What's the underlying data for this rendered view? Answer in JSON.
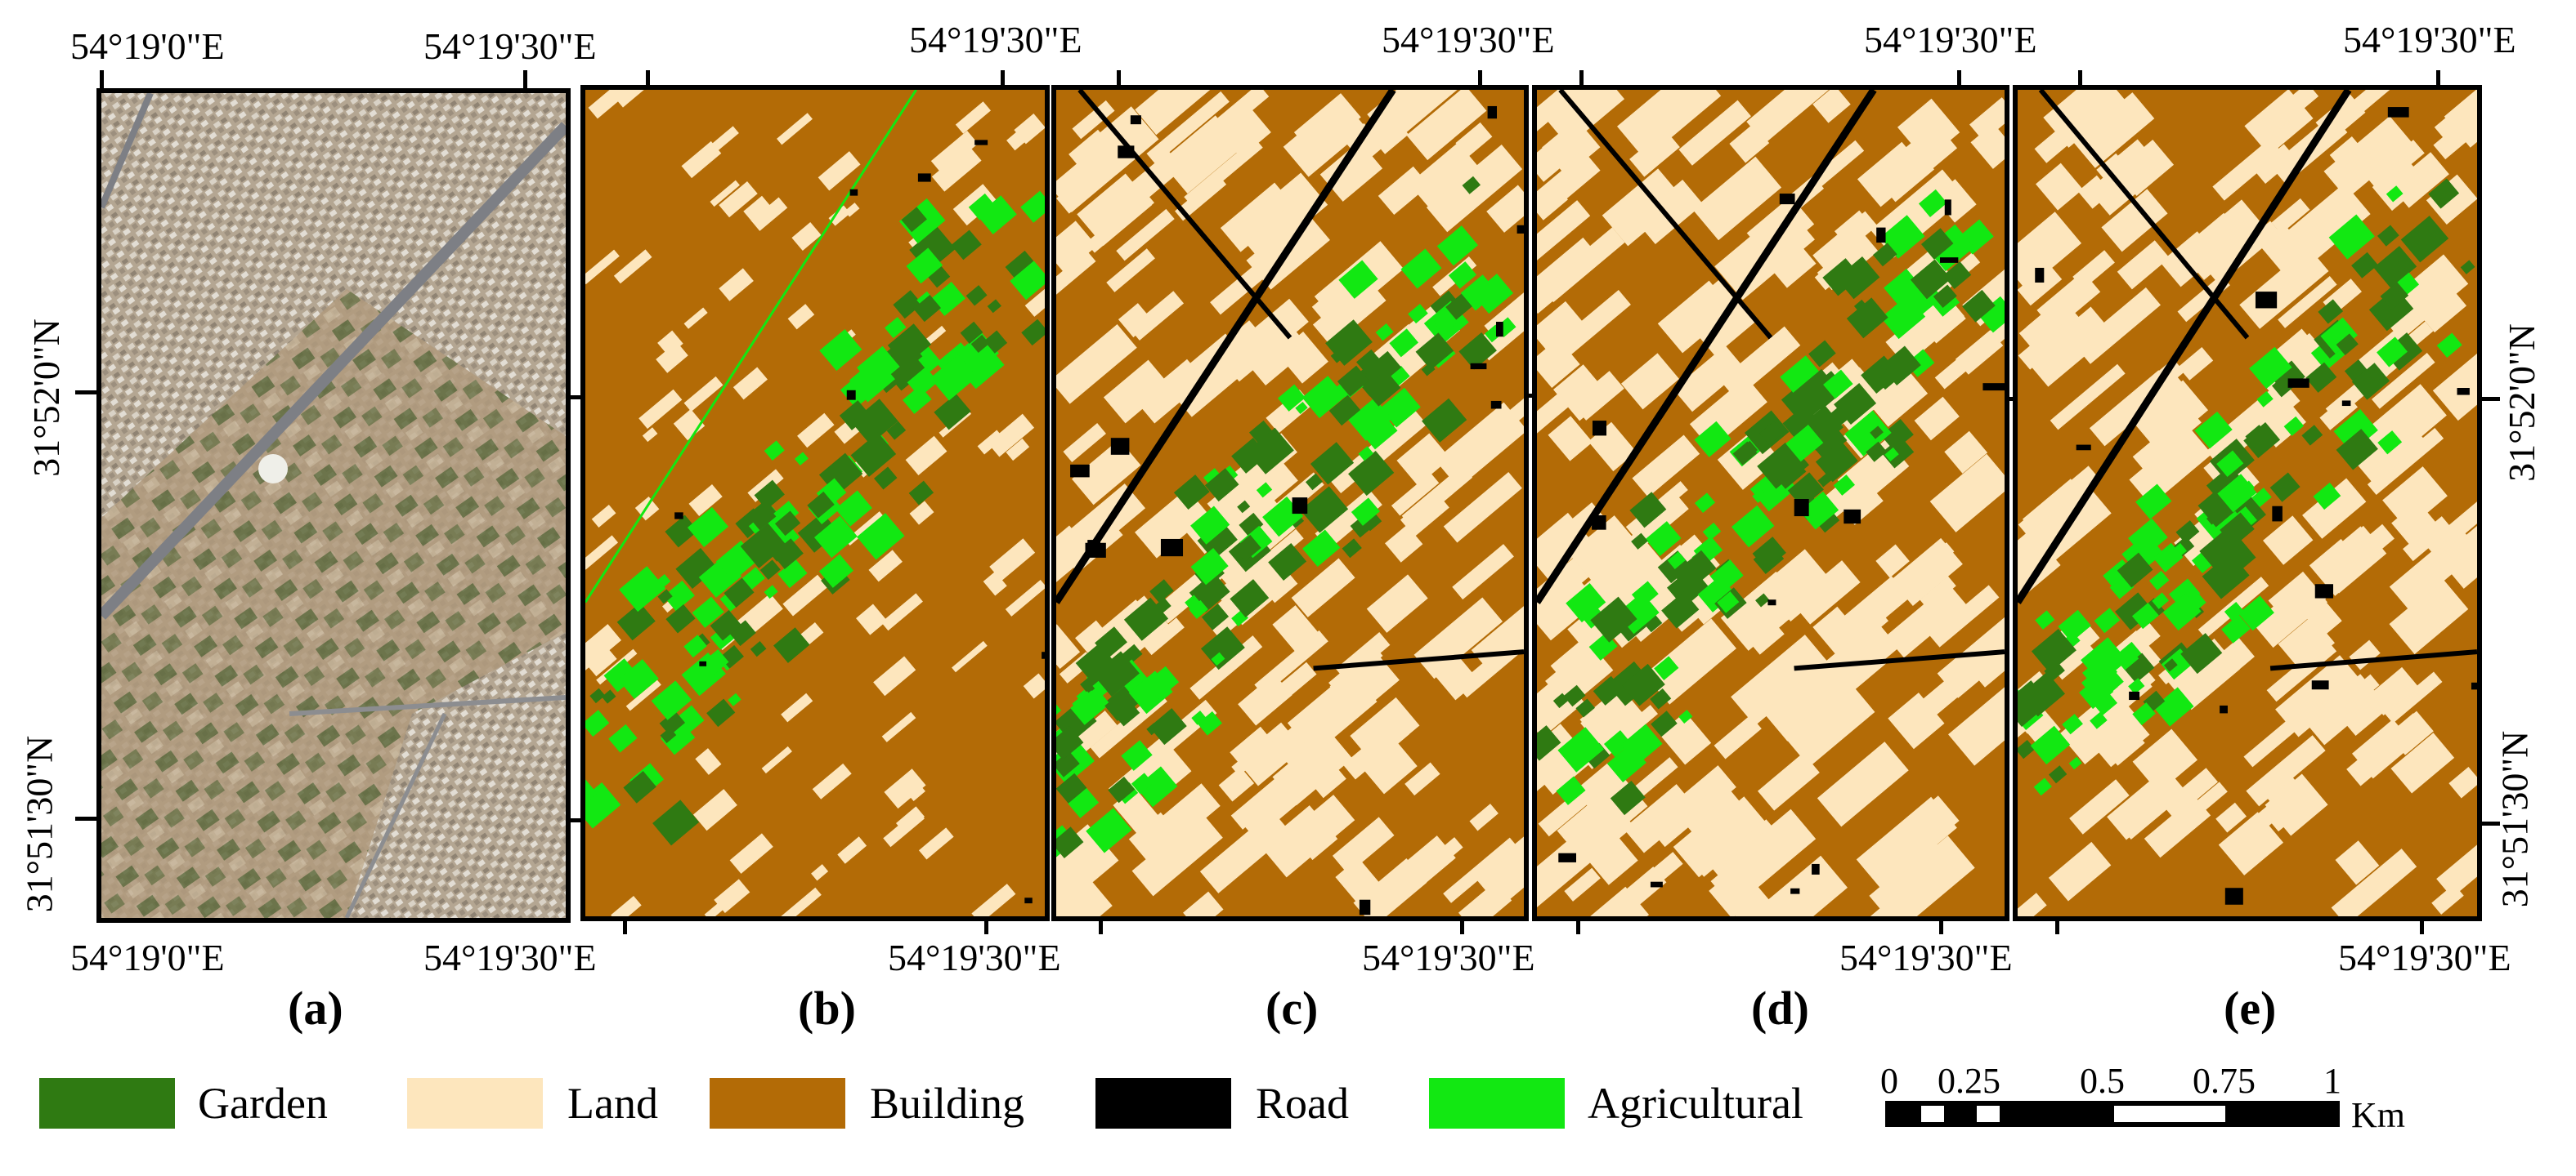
{
  "coordinates": {
    "lon_0": "54°19'0\"E",
    "lon_30": "54°19'30\"E",
    "lon_30_clipped": "54°19'30\"",
    "lon_30_e_clipped": "54°19'30\"E",
    "lat_52": "31°52'0\"N",
    "lat_5130": "31°51'30\"N"
  },
  "panels": [
    {
      "letter": "(a)",
      "kind": "satellite"
    },
    {
      "letter": "(b)",
      "kind": "classified"
    },
    {
      "letter": "(c)",
      "kind": "classified"
    },
    {
      "letter": "(d)",
      "kind": "classified"
    },
    {
      "letter": "(e)",
      "kind": "classified"
    }
  ],
  "legend": {
    "items": [
      {
        "label": "Garden",
        "color": "#2f7a12"
      },
      {
        "label": "Land",
        "color": "#fde6bd"
      },
      {
        "label": "Building",
        "color": "#b36b06"
      },
      {
        "label": "Road",
        "color": "#000000"
      },
      {
        "label": "Agricultural",
        "color": "#12e812"
      }
    ]
  },
  "scale_bar": {
    "ticks": [
      "0",
      "0.25",
      "0.5",
      "0.75",
      "1"
    ],
    "unit": "Km"
  },
  "colors": {
    "building": "#b36b06",
    "land": "#fde6bd",
    "garden": "#2f7a12",
    "agricultural": "#12e812",
    "road": "#000000",
    "satellite_base": "#a99a86"
  }
}
